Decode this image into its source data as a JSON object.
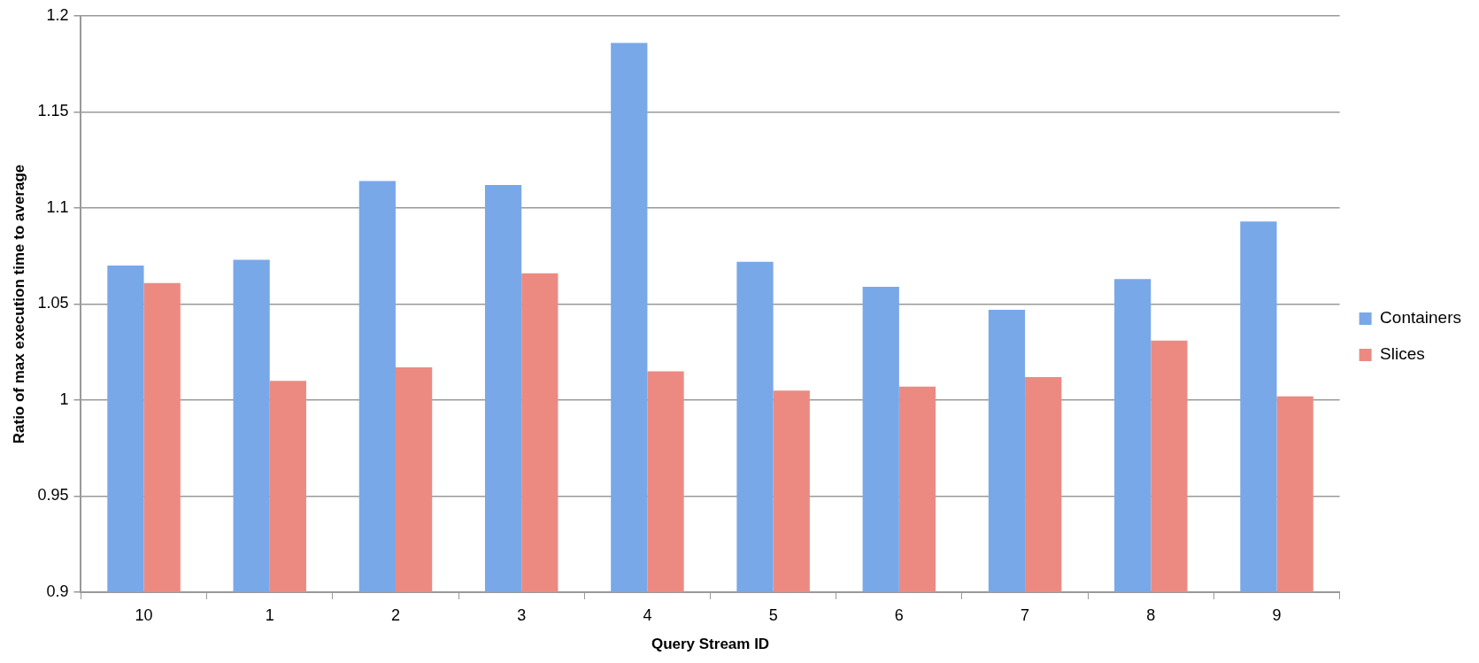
{
  "chart_data": {
    "type": "bar",
    "xlabel": "Query Stream ID",
    "ylabel": "Ratio of max execution time to average",
    "categories": [
      "10",
      "1",
      "2",
      "3",
      "4",
      "5",
      "6",
      "7",
      "8",
      "9"
    ],
    "series": [
      {
        "name": "Containers",
        "color": "#78a8e8",
        "values": [
          1.07,
          1.073,
          1.114,
          1.112,
          1.186,
          1.072,
          1.059,
          1.047,
          1.063,
          1.093
        ]
      },
      {
        "name": "Slices",
        "color": "#ec8a82",
        "values": [
          1.061,
          1.01,
          1.017,
          1.066,
          1.015,
          1.005,
          1.007,
          1.012,
          1.031,
          1.002
        ]
      }
    ],
    "ylim": [
      0.9,
      1.2
    ],
    "yticks": [
      0.9,
      0.95,
      1,
      1.05,
      1.1,
      1.15,
      1.2
    ],
    "grid": "y",
    "legend": "right"
  }
}
